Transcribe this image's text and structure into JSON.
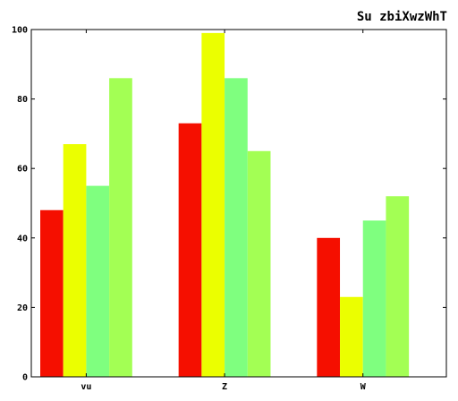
{
  "chart_data": {
    "type": "bar",
    "title": "Su zbiXwzWhT",
    "xlabel": "",
    "ylabel": "",
    "categories": [
      "vu",
      "Z",
      "W"
    ],
    "series": [
      {
        "color": "#f50f00",
        "values": [
          48,
          73,
          40
        ]
      },
      {
        "color": "#ebff00",
        "values": [
          67,
          99,
          23
        ]
      },
      {
        "color": "#7fff7f",
        "values": [
          55,
          86,
          45
        ]
      },
      {
        "color": "#a3ff54",
        "values": [
          86,
          65,
          52
        ]
      }
    ],
    "ylim": [
      0,
      100
    ],
    "yticks": [
      0,
      20,
      40,
      60,
      80,
      100
    ],
    "grid": false,
    "legend": "none"
  }
}
